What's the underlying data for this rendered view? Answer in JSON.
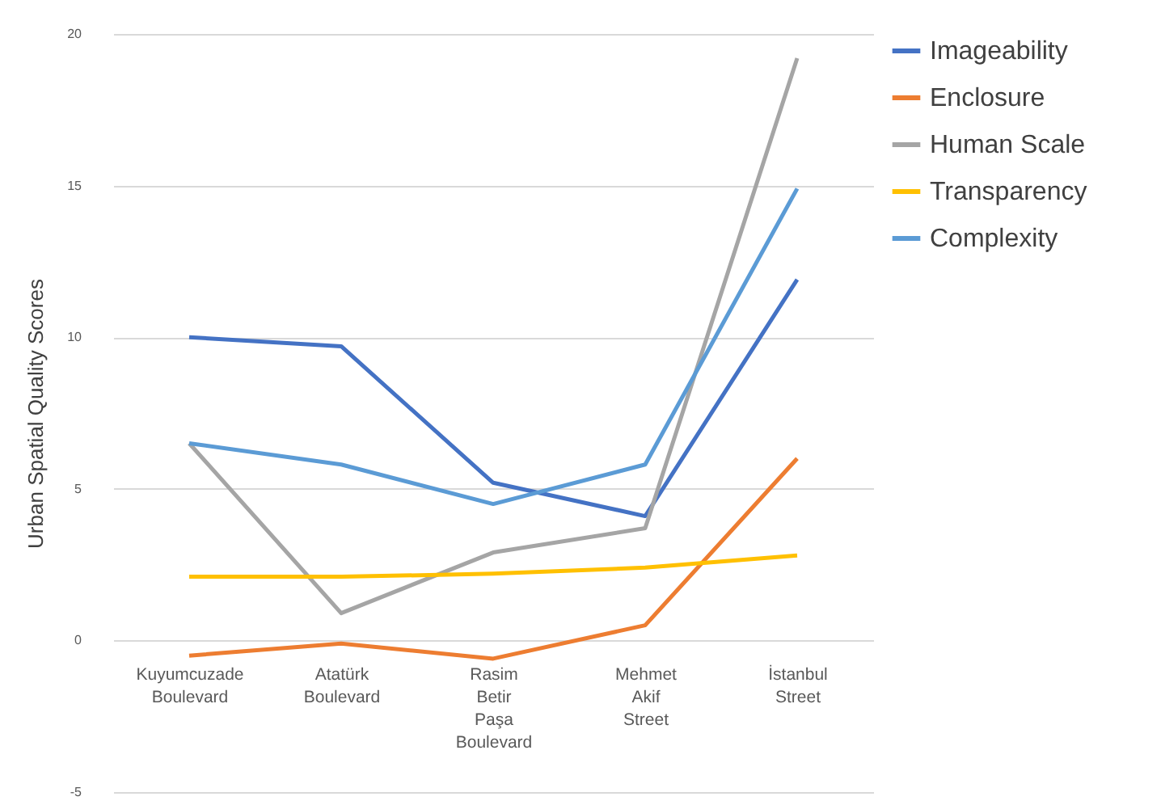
{
  "chart_data": {
    "type": "line",
    "ylabel": "Urban Spatial Quality Scores",
    "categories": [
      "Kuyumcuzade Boulevard",
      "Atatürk Boulevard",
      "Rasim Betir Paşa Boulevard",
      "Mehmet Akif Street",
      "İstanbul Street"
    ],
    "series": [
      {
        "name": "Imageability",
        "color": "#4472c4",
        "values": [
          10,
          9.7,
          5.2,
          4.1,
          11.9
        ]
      },
      {
        "name": "Enclosure",
        "color": "#ed7d31",
        "values": [
          -0.5,
          -0.1,
          -0.6,
          0.5,
          6
        ]
      },
      {
        "name": "Human Scale",
        "color": "#a5a5a5",
        "values": [
          6.5,
          0.9,
          2.9,
          3.7,
          19.2
        ]
      },
      {
        "name": "Transparency",
        "color": "#ffc000",
        "values": [
          2.1,
          2.1,
          2.2,
          2.4,
          2.8
        ]
      },
      {
        "name": "Complexity",
        "color": "#5b9bd5",
        "values": [
          6.5,
          5.8,
          4.5,
          5.8,
          14.9
        ]
      }
    ],
    "ylim": [
      -5,
      20
    ],
    "yticks": [
      -5,
      0,
      5,
      10,
      15,
      20
    ],
    "grid": "y",
    "legend": "right",
    "marker": "none",
    "line_style": "solid"
  }
}
